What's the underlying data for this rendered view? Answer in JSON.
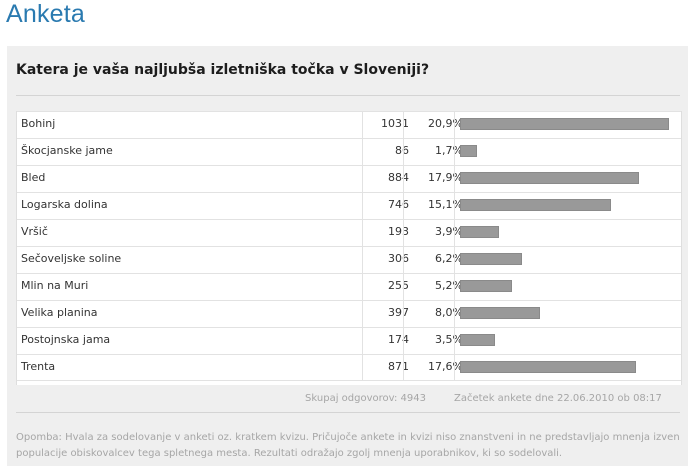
{
  "header": {
    "title": "Anketa"
  },
  "poll": {
    "question": "Katera je vaša najljubša izletniška točka v Sloveniji?",
    "total_text": "Skupaj odgovorov: 4943",
    "start_text": "Začetek ankete dne 22.06.2010 ob 08:17",
    "note_text": "Opomba: Hvala za sodelovanje v anketi oz. kratkem kvizu. Pričujoče ankete in kvizi niso znanstveni in ne predstavljajo mnenja izven populacije obiskovalcev tega spletnega mesta. Rezultati odražajo zgolj mnenja uporabnikov, ki so sodelovali."
  },
  "chart_data": {
    "type": "table",
    "columns": [
      "answer",
      "votes",
      "percent"
    ],
    "rows": [
      {
        "label": "Bohinj",
        "count": "1031",
        "percent": "20,9%",
        "value": 20.9
      },
      {
        "label": "Škocjanske jame",
        "count": "86",
        "percent": "1,7%",
        "value": 1.7
      },
      {
        "label": "Bled",
        "count": "884",
        "percent": "17,9%",
        "value": 17.9
      },
      {
        "label": "Logarska dolina",
        "count": "746",
        "percent": "15,1%",
        "value": 15.1
      },
      {
        "label": "Vršič",
        "count": "193",
        "percent": "3,9%",
        "value": 3.9
      },
      {
        "label": "Sečoveljske soline",
        "count": "306",
        "percent": "6,2%",
        "value": 6.2
      },
      {
        "label": "Mlin na Muri",
        "count": "255",
        "percent": "5,2%",
        "value": 5.2
      },
      {
        "label": "Velika planina",
        "count": "397",
        "percent": "8,0%",
        "value": 8.0
      },
      {
        "label": "Postojnska jama",
        "count": "174",
        "percent": "3,5%",
        "value": 3.5
      },
      {
        "label": "Trenta",
        "count": "871",
        "percent": "17,6%",
        "value": 17.6
      }
    ],
    "total": 4943,
    "bar_color": "#999999"
  }
}
